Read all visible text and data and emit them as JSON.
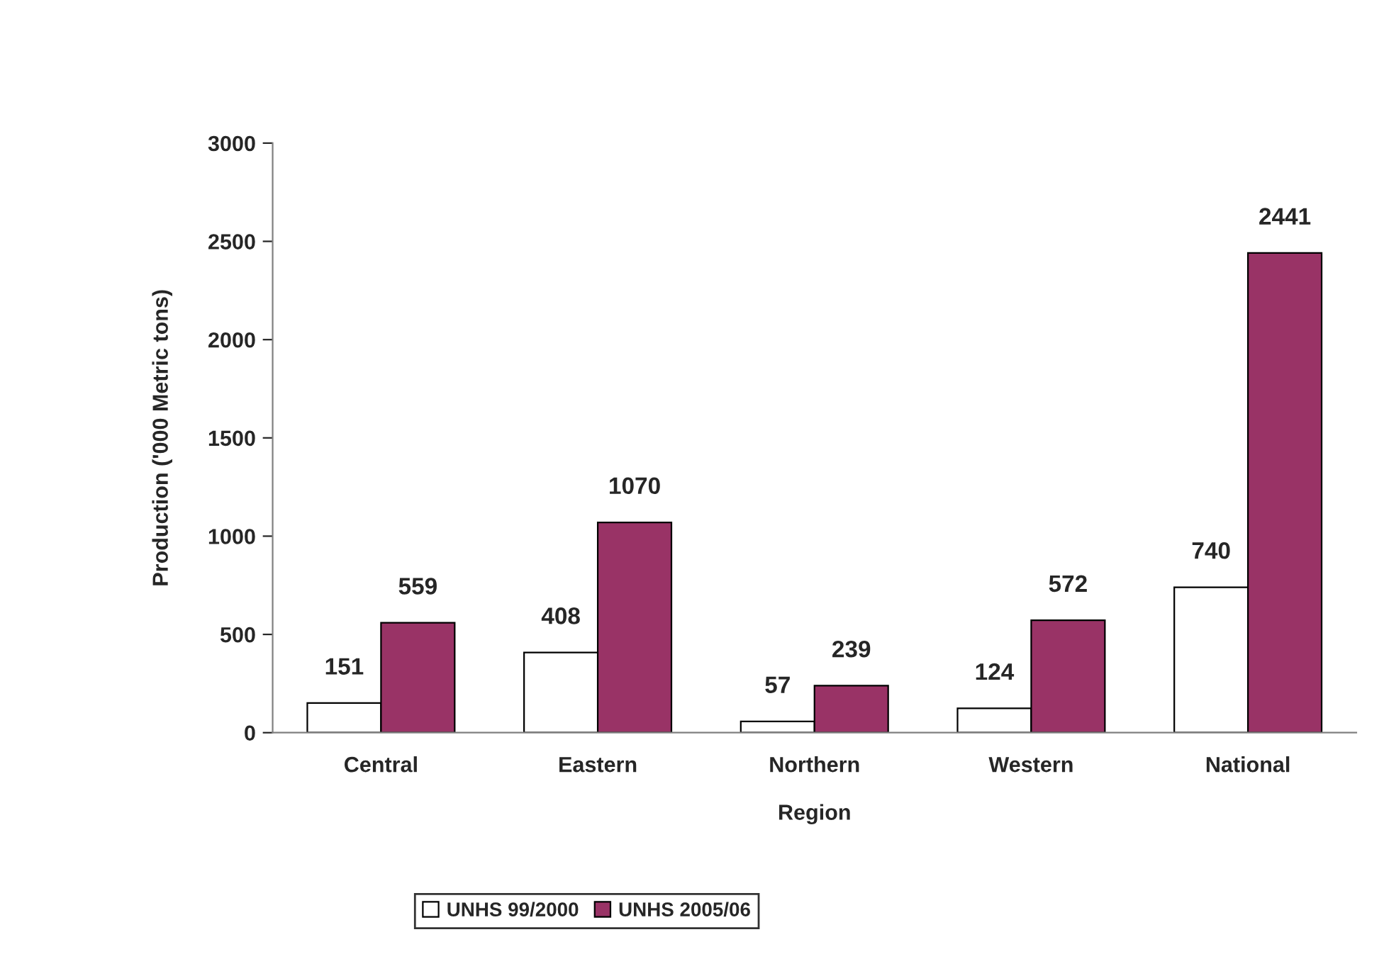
{
  "chart_data": {
    "type": "bar",
    "xlabel": "Region",
    "ylabel": "Production ('000 Metric tons)",
    "categories": [
      "Central",
      "Eastern",
      "Northern",
      "Western",
      "National"
    ],
    "series": [
      {
        "name": "UNHS 99/2000",
        "color": "#ffffff",
        "values": [
          151,
          408,
          57,
          124,
          740
        ]
      },
      {
        "name": "UNHS 2005/06",
        "color": "#993366",
        "values": [
          559,
          1070,
          239,
          572,
          2441
        ]
      }
    ],
    "ylim": [
      0,
      3000
    ],
    "yticks": [
      0,
      500,
      1000,
      1500,
      2000,
      2500,
      3000
    ],
    "data_labels": true,
    "grid": false,
    "legend": "bottom"
  }
}
